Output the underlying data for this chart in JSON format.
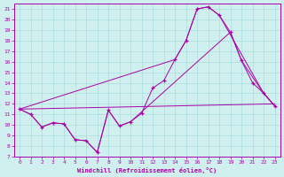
{
  "xlabel": "Windchill (Refroidissement éolien,°C)",
  "background_color": "#cff0ee",
  "line_color": "#aa00aa",
  "grid_color": "#aadddd",
  "xlim": [
    -0.5,
    23.5
  ],
  "ylim": [
    7,
    21.5
  ],
  "xticks": [
    0,
    1,
    2,
    3,
    4,
    5,
    6,
    7,
    8,
    9,
    10,
    11,
    12,
    13,
    14,
    15,
    16,
    17,
    18,
    19,
    20,
    21,
    22,
    23
  ],
  "yticks": [
    7,
    8,
    9,
    10,
    11,
    12,
    13,
    14,
    15,
    16,
    17,
    18,
    19,
    20,
    21
  ],
  "lines": [
    {
      "x": [
        0,
        1,
        2,
        3,
        4,
        5,
        6,
        7,
        8,
        9,
        10,
        11,
        12,
        13,
        14,
        15,
        16,
        17,
        18,
        19,
        20,
        21,
        22,
        23
      ],
      "y": [
        11.5,
        11.0,
        9.8,
        10.2,
        10.1,
        8.6,
        8.5,
        7.4,
        11.4,
        9.9,
        10.3,
        11.1,
        13.5,
        14.2,
        16.2,
        18.0,
        21.0,
        21.2,
        20.4,
        18.8,
        16.1,
        14.0,
        13.0,
        11.8
      ],
      "with_marker": true
    },
    {
      "x": [
        0,
        14,
        15,
        16,
        17,
        18,
        22,
        23
      ],
      "y": [
        11.5,
        16.2,
        18.0,
        21.0,
        21.2,
        20.4,
        13.0,
        11.8
      ],
      "with_marker": false
    },
    {
      "x": [
        0,
        23
      ],
      "y": [
        11.5,
        12.0
      ],
      "with_marker": false
    },
    {
      "x": [
        0,
        1,
        2,
        3,
        4,
        5,
        6,
        7,
        8,
        9,
        10,
        19,
        20,
        22,
        23
      ],
      "y": [
        11.5,
        11.0,
        9.8,
        10.2,
        10.1,
        8.6,
        8.5,
        7.4,
        11.4,
        9.9,
        10.3,
        18.8,
        16.1,
        13.0,
        11.8
      ],
      "with_marker": false
    }
  ]
}
